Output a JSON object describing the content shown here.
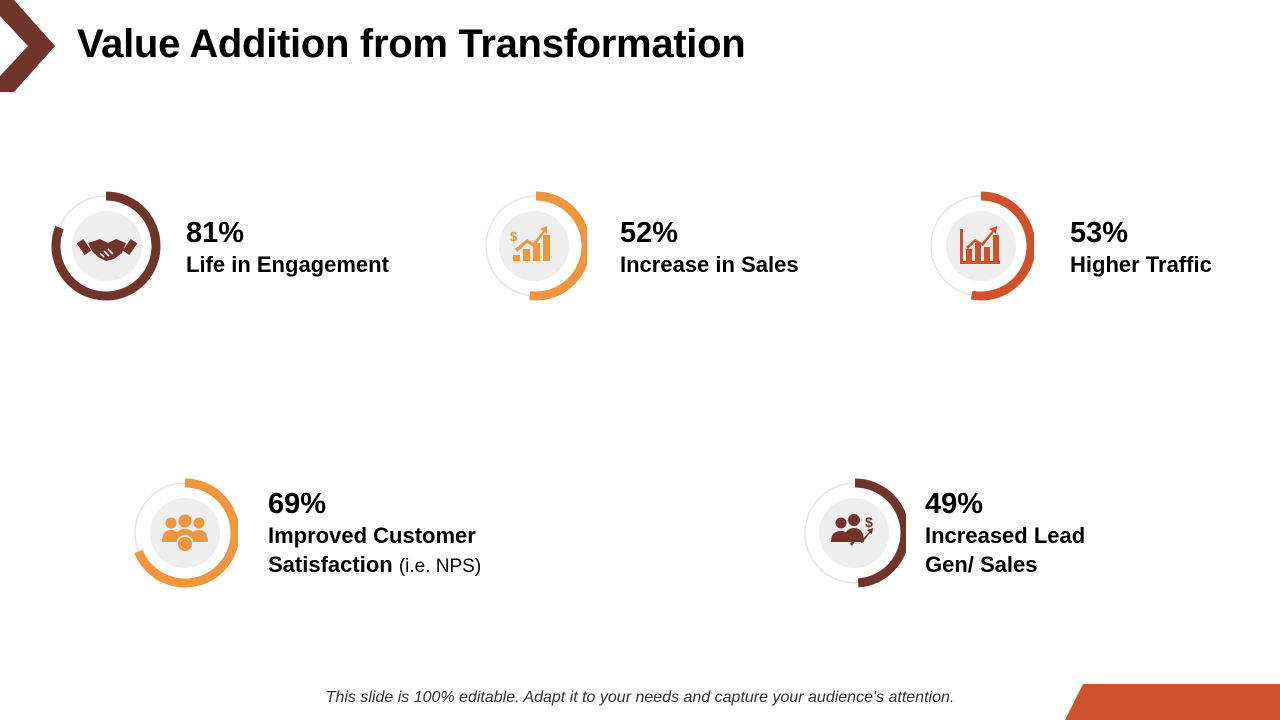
{
  "header": {
    "title": "Value Addition from Transformation"
  },
  "colors": {
    "dark": "#70352A",
    "orange": "#F0963D",
    "rust": "#D0522C",
    "track": "#e6e6e6",
    "icon_bg": "#efefef"
  },
  "metrics": [
    {
      "value": "81%",
      "label": "Life in Engagement",
      "fraction": 0.81,
      "icon": "handshake-icon"
    },
    {
      "value": "52%",
      "label": "Increase in Sales",
      "fraction": 0.52,
      "icon": "sales-growth-icon"
    },
    {
      "value": "53%",
      "label": "Higher Traffic",
      "fraction": 0.53,
      "icon": "bar-chart-growth-icon"
    },
    {
      "value": "69%",
      "label_line1": "Improved Customer",
      "label_line2": "Satisfaction",
      "label_suffix": "(i.e. NPS)",
      "fraction": 0.69,
      "icon": "customer-group-icon"
    },
    {
      "value": "49%",
      "label_line1": "Increased Lead",
      "label_line2": "Gen/ Sales",
      "fraction": 0.49,
      "icon": "business-people-dollar-icon"
    }
  ],
  "footer": {
    "note": "This slide is 100% editable. Adapt it to your needs and capture your audience's attention."
  }
}
